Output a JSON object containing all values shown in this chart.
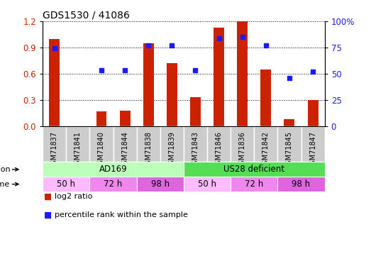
{
  "title": "GDS1530 / 41086",
  "samples": [
    "GSM71837",
    "GSM71841",
    "GSM71840",
    "GSM71844",
    "GSM71838",
    "GSM71839",
    "GSM71843",
    "GSM71846",
    "GSM71836",
    "GSM71842",
    "GSM71845",
    "GSM71847"
  ],
  "log2_ratio": [
    1.0,
    0.0,
    0.17,
    0.18,
    0.95,
    0.72,
    0.33,
    1.13,
    1.2,
    0.65,
    0.08,
    0.3
  ],
  "percentile_rank": [
    74,
    null,
    53,
    53,
    77,
    77,
    53,
    84,
    85,
    77,
    46,
    52
  ],
  "bar_color": "#cc2200",
  "dot_color": "#1a1aff",
  "ylim_left": [
    0,
    1.2
  ],
  "ylim_right": [
    0,
    100
  ],
  "yticks_left": [
    0,
    0.3,
    0.6,
    0.9,
    1.2
  ],
  "yticks_right": [
    0,
    25,
    50,
    75,
    100
  ],
  "infection_groups": [
    {
      "label": "AD169",
      "start": 0,
      "end": 6,
      "color": "#bbffbb"
    },
    {
      "label": "US28 deficient",
      "start": 6,
      "end": 12,
      "color": "#55dd55"
    }
  ],
  "time_groups": [
    {
      "label": "50 h",
      "start": 0,
      "end": 2,
      "color": "#ffbbff"
    },
    {
      "label": "72 h",
      "start": 2,
      "end": 4,
      "color": "#ee88ee"
    },
    {
      "label": "98 h",
      "start": 4,
      "end": 6,
      "color": "#dd66dd"
    },
    {
      "label": "50 h",
      "start": 6,
      "end": 8,
      "color": "#ffbbff"
    },
    {
      "label": "72 h",
      "start": 8,
      "end": 10,
      "color": "#ee88ee"
    },
    {
      "label": "98 h",
      "start": 10,
      "end": 12,
      "color": "#dd66dd"
    }
  ],
  "legend_items": [
    {
      "label": "log2 ratio",
      "color": "#cc2200"
    },
    {
      "label": "percentile rank within the sample",
      "color": "#1a1aff"
    }
  ],
  "grid_color": "#000000",
  "background_color": "#ffffff",
  "bar_width": 0.45,
  "title_fontsize": 10,
  "tick_fontsize": 8.5,
  "sample_fontsize": 7,
  "row_label_fontsize": 8,
  "cell_label_fontsize": 8.5,
  "legend_fontsize": 8,
  "sample_box_color": "#cccccc"
}
